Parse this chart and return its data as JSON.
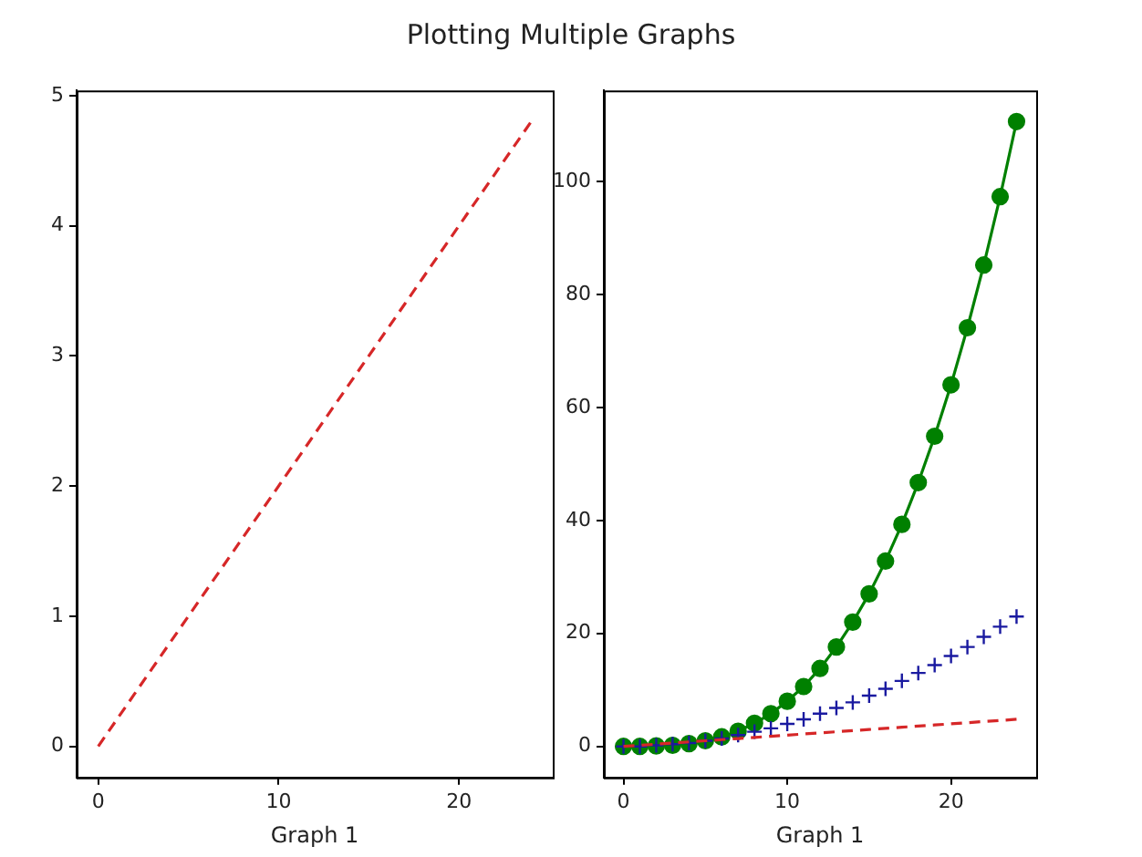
{
  "chart_data": [
    {
      "type": "line",
      "title": "Plotting Multiple Graphs",
      "xlabel": "Graph 1",
      "x": [
        0,
        1,
        2,
        3,
        4,
        5,
        6,
        7,
        8,
        9,
        10,
        11,
        12,
        13,
        14,
        15,
        16,
        17,
        18,
        19,
        20,
        21,
        22,
        23,
        24
      ],
      "xlim": [
        -1.2,
        25.2
      ],
      "xticks": [
        0,
        10,
        20
      ],
      "ylim": [
        -0.24,
        5.04
      ],
      "yticks": [
        0,
        1,
        2,
        3,
        4,
        5
      ],
      "series": [
        {
          "color": "#d62728",
          "line_style": "dashed",
          "marker": "none",
          "values": [
            0,
            0.2,
            0.4,
            0.6,
            0.8,
            1,
            1.2,
            1.4,
            1.6,
            1.8,
            2,
            2.2,
            2.4,
            2.6,
            2.8,
            3,
            3.2,
            3.4,
            3.6,
            3.8,
            4,
            4.2,
            4.4,
            4.6,
            4.8
          ]
        }
      ]
    },
    {
      "type": "line",
      "xlabel": "Graph 1",
      "x": [
        0,
        1,
        2,
        3,
        4,
        5,
        6,
        7,
        8,
        9,
        10,
        11,
        12,
        13,
        14,
        15,
        16,
        17,
        18,
        19,
        20,
        21,
        22,
        23,
        24
      ],
      "xlim": [
        -1.2,
        25.2
      ],
      "xticks": [
        0,
        10,
        20
      ],
      "ylim": [
        -5.5,
        116.1
      ],
      "yticks": [
        0,
        20,
        40,
        60,
        80,
        100
      ],
      "series": [
        {
          "color": "#d62728",
          "line_style": "dashed",
          "marker": "none",
          "values": [
            0,
            0.2,
            0.4,
            0.6,
            0.8,
            1,
            1.2,
            1.4,
            1.6,
            1.8,
            2,
            2.2,
            2.4,
            2.6,
            2.8,
            3,
            3.2,
            3.4,
            3.6,
            3.8,
            4,
            4.2,
            4.4,
            4.6,
            4.8
          ]
        },
        {
          "type": "scatter",
          "color": "#1a1aa0",
          "marker": "cross",
          "values": [
            0,
            0,
            0.2,
            0.4,
            0.6,
            1,
            1.4,
            2,
            2.6,
            3.2,
            4,
            4.8,
            5.8,
            6.8,
            7.8,
            9,
            10.2,
            11.6,
            13,
            14.4,
            16,
            17.6,
            19.4,
            21.2,
            23
          ]
        },
        {
          "color": "#008000",
          "line_style": "solid",
          "marker": "circle",
          "values": [
            0,
            0,
            0.1,
            0.2,
            0.5,
            1,
            1.7,
            2.7,
            4.1,
            5.8,
            8,
            10.6,
            13.8,
            17.6,
            22,
            27,
            32.8,
            39.3,
            46.7,
            54.9,
            64,
            74.1,
            85.2,
            97.3,
            110.6
          ]
        }
      ]
    }
  ]
}
